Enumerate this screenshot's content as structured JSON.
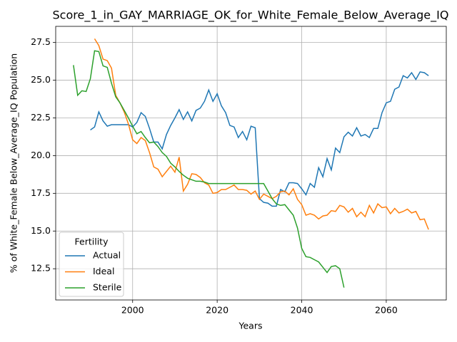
{
  "chart_data": {
    "type": "line",
    "title": "Score_1_in_GAY_MARRIAGE_OK_for_White_Female_Below_Average_IQ",
    "xlabel": "Years",
    "ylabel": "% of White_Female Below_Average_IQ Population",
    "legend_title": "Fertility",
    "legend": "lower left",
    "grid": true,
    "xlim": [
      1981.8,
      2074.2
    ],
    "ylim": [
      10.43,
      28.57
    ],
    "xticks": [
      2000,
      2020,
      2040,
      2060
    ],
    "yticks": [
      12.5,
      {
        "value": 15,
        "label": "15.0"
      },
      17.5,
      {
        "value": 20,
        "label": "20.0"
      },
      22.5,
      {
        "value": 25,
        "label": "25.0"
      },
      27.5
    ],
    "x": [
      1986,
      1987,
      1988,
      1989,
      1990,
      1991,
      1992,
      1993,
      1994,
      1995,
      1996,
      1997,
      1998,
      1999,
      2000,
      2001,
      2002,
      2003,
      2004,
      2005,
      2006,
      2007,
      2008,
      2009,
      2010,
      2011,
      2012,
      2013,
      2014,
      2015,
      2016,
      2017,
      2018,
      2019,
      2020,
      2021,
      2022,
      2023,
      2024,
      2025,
      2026,
      2027,
      2028,
      2029,
      2030,
      2031,
      2032,
      2033,
      2034,
      2035,
      2036,
      2037,
      2038,
      2039,
      2040,
      2041,
      2042,
      2043,
      2044,
      2045,
      2046,
      2047,
      2048,
      2049,
      2050,
      2051,
      2052,
      2053,
      2054,
      2055,
      2056,
      2057,
      2058,
      2059,
      2060,
      2061,
      2062,
      2063,
      2064,
      2065,
      2066,
      2067,
      2068,
      2069,
      2070
    ],
    "series": [
      {
        "name": "Actual",
        "color": "#1f77b4",
        "values": [
          null,
          null,
          null,
          null,
          21.7,
          21.9,
          22.9,
          22.3,
          21.95,
          22.05,
          22.05,
          22.05,
          22.05,
          22.05,
          21.9,
          22.2,
          22.85,
          22.6,
          21.8,
          20.9,
          20.9,
          20.45,
          21.4,
          22.0,
          22.5,
          23.05,
          22.4,
          22.9,
          22.3,
          23.0,
          23.15,
          23.6,
          24.35,
          23.6,
          24.1,
          23.3,
          22.85,
          22.0,
          21.9,
          21.2,
          21.6,
          21.05,
          21.95,
          21.85,
          17.15,
          16.9,
          16.85,
          16.65,
          16.65,
          17.75,
          17.6,
          18.2,
          18.2,
          18.15,
          17.8,
          17.4,
          18.15,
          17.9,
          19.2,
          18.6,
          19.8,
          19.05,
          20.5,
          20.2,
          21.25,
          21.55,
          21.3,
          21.85,
          21.3,
          21.4,
          21.2,
          21.8,
          21.8,
          22.85,
          23.5,
          23.6,
          24.4,
          24.55,
          25.3,
          25.15,
          25.5,
          25.05,
          25.55,
          25.5,
          25.3
        ]
      },
      {
        "name": "Ideal",
        "color": "#ff7f0e",
        "values": [
          null,
          null,
          null,
          null,
          null,
          27.75,
          27.3,
          26.4,
          26.3,
          25.8,
          24.0,
          23.5,
          22.9,
          22.1,
          21.05,
          20.8,
          21.2,
          21.0,
          20.2,
          19.25,
          19.1,
          18.6,
          18.95,
          19.3,
          18.9,
          19.9,
          17.65,
          18.1,
          18.8,
          18.75,
          18.55,
          18.2,
          18.05,
          17.5,
          17.55,
          17.75,
          17.75,
          17.9,
          18.05,
          17.75,
          17.75,
          17.7,
          17.45,
          17.65,
          17.1,
          17.45,
          17.3,
          17.15,
          17.3,
          17.6,
          17.65,
          17.4,
          17.8,
          17.1,
          16.75,
          16.05,
          16.15,
          16.05,
          15.8,
          16.0,
          16.05,
          16.35,
          16.3,
          16.7,
          16.6,
          16.25,
          16.5,
          15.95,
          16.25,
          15.95,
          16.7,
          16.2,
          16.8,
          16.55,
          16.6,
          16.15,
          16.5,
          16.2,
          16.3,
          16.45,
          16.2,
          16.3,
          15.75,
          15.8,
          15.1
        ]
      },
      {
        "name": "Sterile",
        "color": "#2ca02c",
        "values": [
          26.0,
          24.0,
          24.3,
          24.25,
          25.1,
          26.95,
          26.9,
          25.95,
          25.85,
          24.8,
          23.9,
          23.5,
          23.0,
          22.5,
          21.95,
          21.45,
          21.6,
          21.2,
          20.85,
          20.9,
          20.6,
          20.2,
          19.95,
          19.5,
          19.25,
          18.95,
          18.7,
          18.5,
          18.4,
          18.3,
          18.3,
          18.25,
          18.15,
          18.15,
          18.15,
          18.15,
          18.15,
          18.15,
          18.15,
          18.15,
          18.15,
          18.15,
          18.15,
          18.15,
          18.15,
          18.15,
          17.65,
          17.15,
          16.8,
          16.7,
          16.75,
          16.4,
          16.05,
          15.2,
          13.85,
          13.3,
          13.25,
          13.1,
          12.95,
          12.6,
          12.25,
          12.65,
          12.7,
          12.5,
          11.25,
          null,
          null,
          null,
          null,
          null,
          null,
          null,
          null,
          null,
          null,
          null,
          null,
          null,
          null,
          null,
          null,
          null,
          null,
          null,
          null
        ]
      }
    ]
  }
}
